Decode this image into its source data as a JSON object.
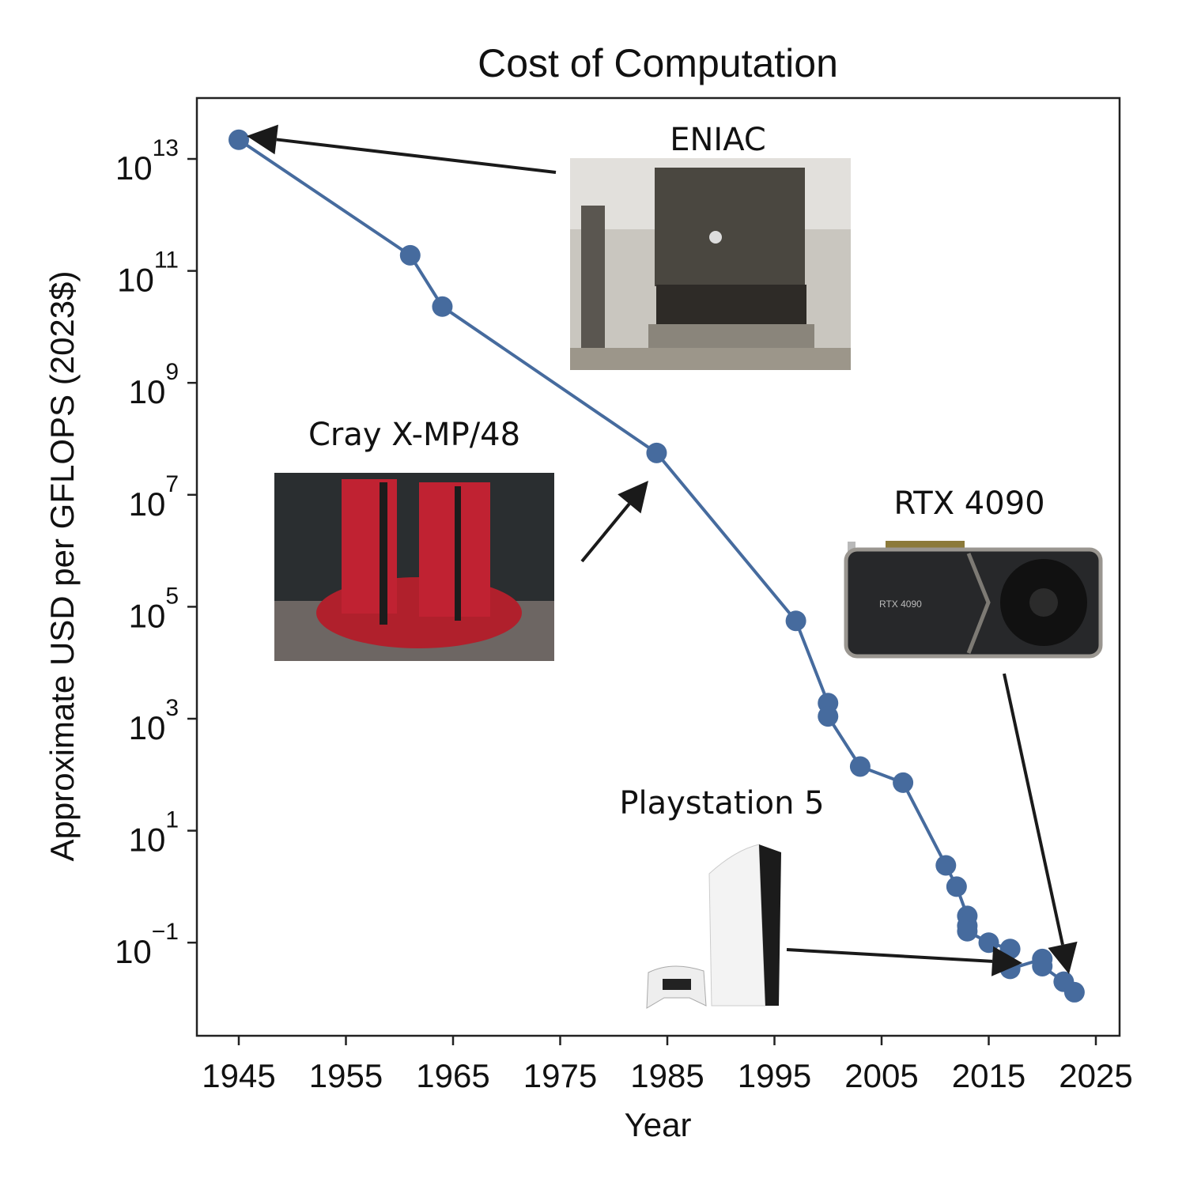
{
  "chart_data": {
    "type": "line",
    "title": "Cost of Computation",
    "xlabel": "Year",
    "ylabel": "Approximate USD per GFLOPS (2023$)",
    "x_ticks": [
      1945,
      1955,
      1965,
      1975,
      1985,
      1995,
      2005,
      2015,
      2025
    ],
    "y_ticks": [
      {
        "base": "10",
        "exp": "13"
      },
      {
        "base": "10",
        "exp": "11"
      },
      {
        "base": "10",
        "exp": "9"
      },
      {
        "base": "10",
        "exp": "7"
      },
      {
        "base": "10",
        "exp": "5"
      },
      {
        "base": "10",
        "exp": "3"
      },
      {
        "base": "10",
        "exp": "1"
      },
      {
        "base": "10",
        "exp": "−1"
      }
    ],
    "y_scale": "log",
    "xlim": [
      1941,
      2027
    ],
    "ylim_log10": [
      -2.63,
      14.0
    ],
    "grid": false,
    "series_color": "#466b9e",
    "points": [
      {
        "x": 1945,
        "y": 22000000000000.0
      },
      {
        "x": 1961,
        "y": 190000000000.0
      },
      {
        "x": 1964,
        "y": 23000000000.0
      },
      {
        "x": 1984,
        "y": 56000000.0
      },
      {
        "x": 1997,
        "y": 56000.0
      },
      {
        "x": 2000,
        "y": 1900.0
      },
      {
        "x": 2000,
        "y": 1100.0
      },
      {
        "x": 2003,
        "y": 140
      },
      {
        "x": 2007,
        "y": 72
      },
      {
        "x": 2011,
        "y": 2.4
      },
      {
        "x": 2012,
        "y": 1.0
      },
      {
        "x": 2013,
        "y": 0.3
      },
      {
        "x": 2013,
        "y": 0.2
      },
      {
        "x": 2013,
        "y": 0.16
      },
      {
        "x": 2015,
        "y": 0.1
      },
      {
        "x": 2017,
        "y": 0.077
      },
      {
        "x": 2017,
        "y": 0.034
      },
      {
        "x": 2020,
        "y": 0.051
      },
      {
        "x": 2020,
        "y": 0.038
      },
      {
        "x": 2022,
        "y": 0.02
      },
      {
        "x": 2023,
        "y": 0.013
      }
    ],
    "annotations": [
      {
        "label": "ENIAC",
        "target": {
          "x": 1945,
          "y": 22000000000000.0
        }
      },
      {
        "label": "Cray X-MP/48",
        "target": {
          "x": 1984,
          "y": 56000000.0
        }
      },
      {
        "label": "RTX 4090",
        "target": {
          "x": 2023,
          "y": 0.03
        }
      },
      {
        "label": "Playstation 5",
        "target": {
          "x": 2017,
          "y": 0.045
        }
      }
    ]
  }
}
